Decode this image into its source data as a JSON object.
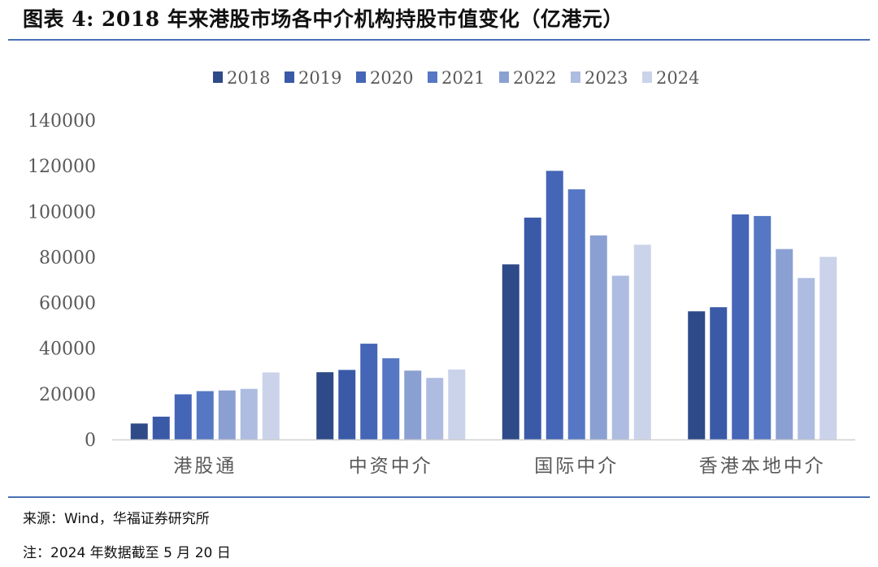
{
  "figure": {
    "title": "图表 4:  2018 年来港股市场各中介机构持股市值变化（亿港元）",
    "source": "来源：Wind，华福证券研究所",
    "note": "注：2024 年数据截至 5 月 20 日"
  },
  "chart_data": {
    "type": "bar",
    "title": "",
    "xlabel": "",
    "ylabel": "",
    "ylim": [
      0,
      140000
    ],
    "ytick_values": [
      0,
      20000,
      40000,
      60000,
      80000,
      100000,
      120000,
      140000
    ],
    "grid": false,
    "legend_position": "top-center",
    "categories": [
      "港股通",
      "中资中介",
      "国际中介",
      "香港本地中介"
    ],
    "series": [
      {
        "name": "2018",
        "color": "#2f4a88",
        "values": [
          7000,
          29500,
          76800,
          56200
        ]
      },
      {
        "name": "2019",
        "color": "#3a5aa8",
        "values": [
          10000,
          30500,
          97300,
          58000
        ]
      },
      {
        "name": "2020",
        "color": "#4565b6",
        "values": [
          19800,
          42000,
          117800,
          98700
        ]
      },
      {
        "name": "2021",
        "color": "#5577c4",
        "values": [
          21200,
          35600,
          109700,
          98000
        ]
      },
      {
        "name": "2022",
        "color": "#8ba0d2",
        "values": [
          21500,
          30200,
          89500,
          83500
        ]
      },
      {
        "name": "2023",
        "color": "#adbce0",
        "values": [
          22200,
          27000,
          71800,
          70800
        ]
      },
      {
        "name": "2024",
        "color": "#cad3ea",
        "values": [
          29400,
          30700,
          85400,
          80100
        ]
      }
    ]
  }
}
